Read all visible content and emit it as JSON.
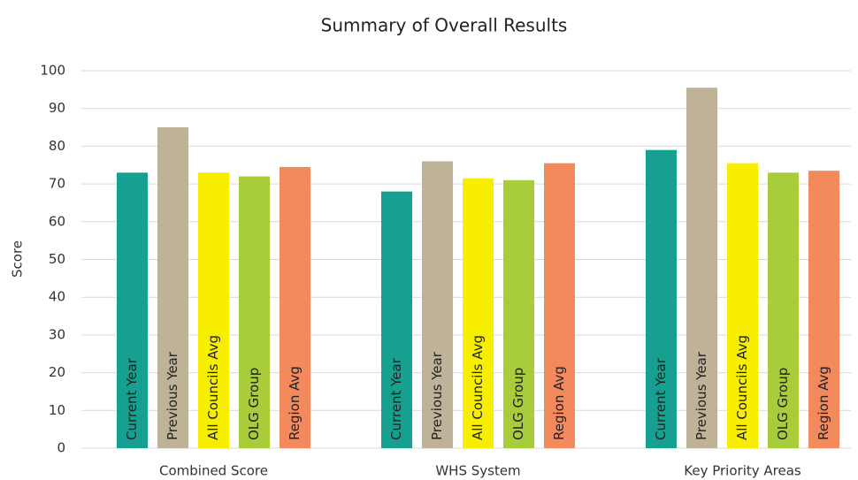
{
  "chart_data": {
    "type": "bar",
    "title": "Summary  of Overall Results",
    "y_label": "Score",
    "categories": [
      "Combined Score",
      "WHS System",
      "Key Priority Areas"
    ],
    "series": [
      {
        "name": "Current Year",
        "color": "#16a08f",
        "values": [
          73,
          68,
          79
        ]
      },
      {
        "name": "Previous Year",
        "color": "#beb399",
        "values": [
          85,
          76,
          95.5
        ]
      },
      {
        "name": "All Councils Avg",
        "color": "#f7ee00",
        "values": [
          73,
          71.5,
          75.5
        ]
      },
      {
        "name": "OLG Group",
        "color": "#a9cc3a",
        "values": [
          72,
          71,
          73
        ]
      },
      {
        "name": "Region Avg",
        "color": "#f28a5e",
        "values": [
          74.5,
          75.5,
          73.5
        ]
      }
    ],
    "ylim": [
      0,
      100
    ],
    "yticks": [
      0,
      10,
      20,
      30,
      40,
      50,
      60,
      70,
      80,
      90,
      100
    ],
    "grid": true
  }
}
